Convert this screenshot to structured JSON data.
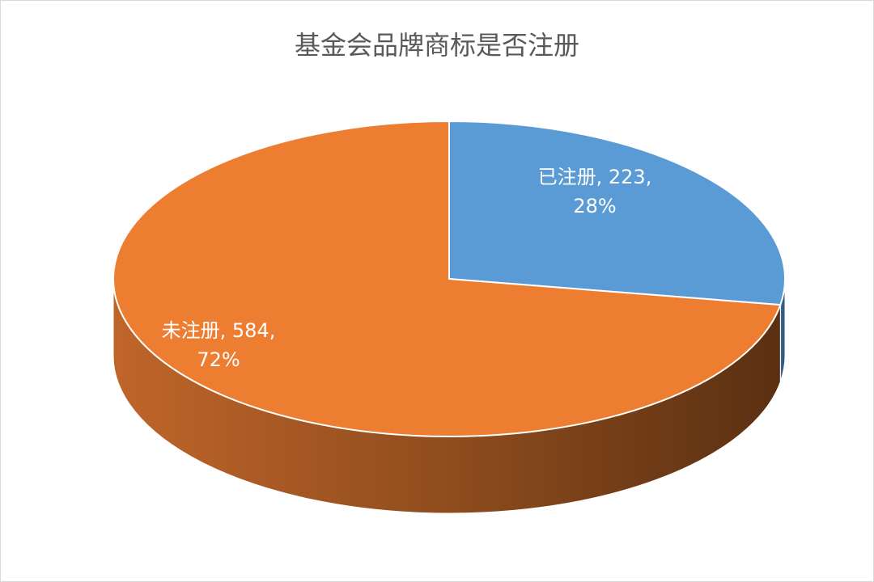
{
  "chart_data": {
    "type": "pie",
    "title": "基金会品牌商标是否注册",
    "categories": [
      "已注册",
      "未注册"
    ],
    "values": [
      223,
      584
    ],
    "value_labels": [
      [
        "已注册, 223,",
        "28%"
      ],
      [
        "未注册, 584,",
        "72%"
      ]
    ],
    "colors": [
      "#5b9bd5",
      "#ed7d31"
    ]
  }
}
